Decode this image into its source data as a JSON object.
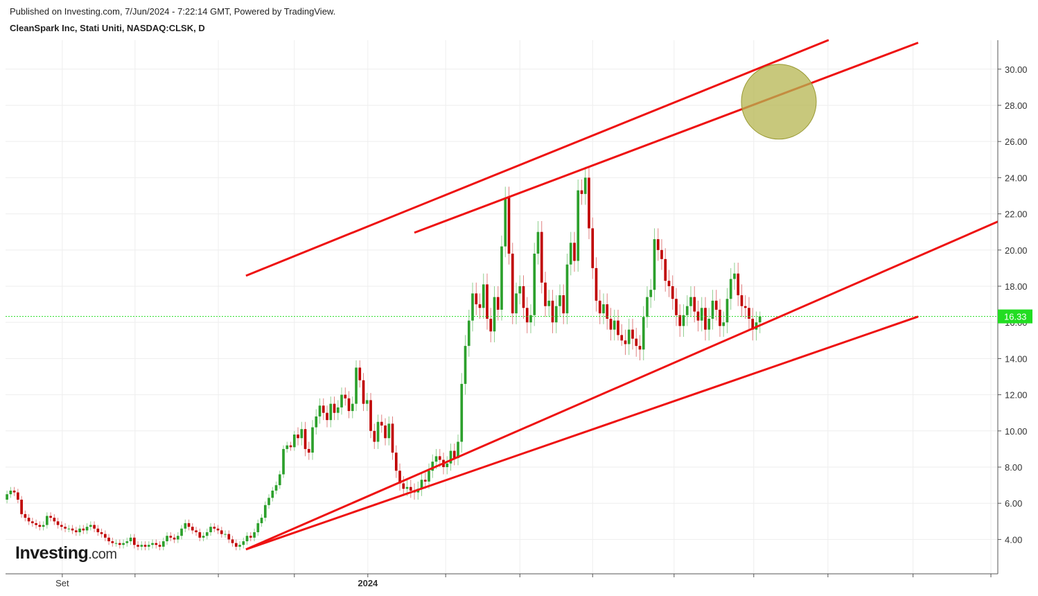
{
  "chart_data": {
    "type": "candlestick",
    "published": "Published on Investing.com, 7/Jun/2024 - 7:22:14 GMT, Powered by TradingView.",
    "title": "CleanSpark Inc, Stati Uniti, NASDAQ:CLSK, D",
    "watermark": {
      "brand": "Investing",
      "suffix": ".com"
    },
    "up_color": "#2ca02c",
    "down_color": "#c00000",
    "grid": true,
    "xlim": [
      -0.4,
      272.4
    ],
    "ylim": [
      2.1,
      31.6
    ],
    "xticks": [
      {
        "value": 15.2,
        "label": "Set"
      },
      {
        "value": 35.2,
        "label": null
      },
      {
        "value": 58.1,
        "label": null
      },
      {
        "value": 79,
        "label": null
      },
      {
        "value": 99.2,
        "label": "2024"
      },
      {
        "value": 120.6,
        "label": null
      },
      {
        "value": 141,
        "label": null
      },
      {
        "value": 161,
        "label": null
      },
      {
        "value": 183.4,
        "label": null
      },
      {
        "value": 205.3,
        "label": null
      },
      {
        "value": 225.7,
        "label": null
      },
      {
        "value": 249.1,
        "label": null
      },
      {
        "value": 270.5,
        "label": null
      }
    ],
    "yticks": [
      {
        "value": 4,
        "label": "4.00"
      },
      {
        "value": 6,
        "label": "6.00"
      },
      {
        "value": 8,
        "label": "8.00"
      },
      {
        "value": 10,
        "label": "10.00"
      },
      {
        "value": 12,
        "label": "12.00"
      },
      {
        "value": 14,
        "label": "14.00"
      },
      {
        "value": 16,
        "label": "16.00"
      },
      {
        "value": 18,
        "label": "18.00"
      },
      {
        "value": 20,
        "label": "20.00"
      },
      {
        "value": 22,
        "label": "22.00"
      },
      {
        "value": 24,
        "label": "24.00"
      },
      {
        "value": 26,
        "label": "26.00"
      },
      {
        "value": 28,
        "label": "28.00"
      },
      {
        "value": 30,
        "label": "30.00"
      }
    ],
    "last_price": {
      "value": 16.33,
      "label": "16.33",
      "color": "#22dd22"
    },
    "open": [
      6.2,
      6.5,
      6.7,
      6.6,
      6.2,
      5.4,
      5.2,
      5.0,
      4.9,
      4.8,
      4.7,
      4.8,
      5.3,
      5.2,
      5.0,
      4.8,
      4.7,
      4.6,
      4.6,
      4.5,
      4.4,
      4.6,
      4.5,
      4.7,
      4.8,
      4.6,
      4.4,
      4.3,
      4.1,
      3.9,
      3.8,
      3.8,
      3.7,
      3.8,
      3.9,
      4.1,
      3.7,
      3.6,
      3.7,
      3.6,
      3.7,
      3.8,
      3.7,
      3.6,
      3.9,
      4.2,
      4.1,
      4.0,
      4.2,
      4.6,
      4.9,
      4.7,
      4.5,
      4.4,
      4.1,
      4.2,
      4.4,
      4.7,
      4.6,
      4.5,
      4.3,
      4.3,
      4.0,
      3.8,
      3.6,
      3.7,
      3.9,
      4.2,
      4.1,
      4.4,
      4.9,
      5.2,
      5.9,
      6.3,
      6.7,
      7.0,
      7.6,
      9.0,
      9.2,
      9.1,
      9.8,
      9.6,
      10.1,
      9.0,
      8.8,
      10.2,
      10.8,
      11.4,
      11.0,
      10.6,
      11.5,
      11.0,
      11.3,
      12.0,
      11.8,
      11.1,
      11.5,
      13.5,
      12.8,
      11.5,
      11.7,
      10.0,
      9.4,
      10.5,
      10.3,
      9.6,
      10.4,
      8.8,
      7.8,
      7.1,
      6.8,
      6.9,
      6.7,
      6.6,
      6.8,
      7.3,
      7.2,
      7.8,
      8.3,
      8.6,
      8.4,
      8.0,
      8.2,
      8.9,
      8.5,
      9.4,
      12.6,
      14.7,
      16.1,
      17.6,
      17.0,
      16.8,
      18.1,
      16.2,
      15.5,
      17.4,
      16.7,
      20.2,
      22.9,
      19.8,
      16.5,
      17.6,
      18.0,
      16.8,
      16.0,
      16.4,
      19.8,
      21.0,
      18.2,
      16.9,
      17.2,
      16.0,
      16.9,
      17.5,
      16.5,
      19.2,
      20.4,
      19.4,
      23.3,
      23.1,
      24.0,
      21.2,
      19.0,
      17.2,
      16.5,
      17.0,
      16.2,
      15.6,
      16.1,
      15.3,
      15.0,
      14.8,
      15.6,
      15.1,
      14.7,
      14.5,
      16.3,
      17.4,
      17.8,
      20.6,
      20.0,
      19.5,
      18.3,
      18.0,
      17.3,
      16.4,
      15.8,
      16.4,
      16.9,
      17.4,
      16.6,
      16.1,
      16.8,
      15.6,
      16.2,
      17.2,
      16.7,
      15.8,
      16.0,
      17.3,
      18.4,
      18.7,
      17.5,
      16.9,
      16.8,
      16.2,
      15.6,
      16.0
    ],
    "high": [
      6.7,
      6.9,
      6.9,
      6.8,
      6.4,
      5.6,
      5.4,
      5.2,
      5.1,
      5.0,
      5.0,
      5.5,
      5.5,
      5.4,
      5.2,
      5.0,
      4.9,
      4.8,
      4.8,
      4.7,
      4.8,
      4.8,
      4.9,
      5.0,
      5.0,
      4.8,
      4.6,
      4.5,
      4.3,
      4.1,
      4.0,
      4.0,
      4.0,
      4.1,
      4.3,
      4.3,
      3.9,
      3.9,
      3.9,
      3.9,
      4.0,
      4.0,
      3.9,
      4.1,
      4.4,
      4.4,
      4.3,
      4.4,
      4.8,
      5.1,
      5.1,
      4.9,
      4.7,
      4.6,
      4.4,
      4.6,
      4.9,
      4.9,
      4.8,
      4.7,
      4.5,
      4.5,
      4.2,
      4.0,
      3.9,
      4.1,
      4.4,
      4.4,
      4.6,
      5.1,
      5.4,
      6.1,
      6.5,
      6.9,
      7.2,
      7.8,
      9.2,
      9.4,
      9.4,
      10.0,
      10.2,
      10.5,
      10.5,
      9.4,
      10.6,
      11.2,
      11.8,
      11.8,
      11.4,
      11.9,
      11.9,
      11.7,
      12.4,
      12.4,
      12.2,
      11.9,
      13.9,
      13.9,
      13.2,
      12.1,
      12.1,
      10.4,
      10.9,
      10.9,
      10.7,
      10.8,
      10.8,
      9.2,
      8.2,
      7.5,
      7.3,
      7.3,
      7.1,
      7.2,
      7.7,
      7.7,
      8.2,
      8.7,
      9.0,
      9.0,
      8.8,
      8.6,
      9.3,
      9.3,
      9.8,
      13.2,
      15.3,
      16.7,
      18.2,
      18.2,
      17.6,
      18.7,
      18.7,
      16.8,
      18.0,
      18.0,
      20.8,
      23.5,
      23.5,
      20.4,
      18.2,
      18.6,
      18.6,
      17.4,
      17.0,
      20.4,
      21.6,
      21.6,
      18.8,
      17.8,
      17.8,
      17.5,
      18.1,
      18.1,
      19.8,
      21.0,
      21.0,
      23.9,
      23.9,
      24.6,
      24.6,
      21.8,
      19.6,
      17.8,
      17.6,
      17.6,
      16.8,
      16.7,
      16.7,
      15.9,
      15.6,
      16.2,
      16.2,
      15.7,
      15.3,
      16.9,
      18.0,
      18.4,
      21.2,
      21.2,
      20.6,
      20.1,
      18.9,
      18.6,
      17.9,
      17.0,
      17.0,
      17.5,
      18.0,
      18.0,
      17.2,
      17.4,
      17.4,
      16.8,
      17.8,
      17.8,
      17.3,
      16.6,
      17.9,
      19.0,
      19.3,
      19.3,
      18.1,
      17.5,
      17.4,
      16.8,
      16.6,
      16.6
    ],
    "low": [
      6.0,
      6.3,
      6.4,
      6.0,
      5.2,
      5.0,
      4.8,
      4.7,
      4.6,
      4.5,
      4.5,
      4.6,
      5.0,
      4.8,
      4.6,
      4.5,
      4.4,
      4.4,
      4.3,
      4.2,
      4.2,
      4.3,
      4.3,
      4.5,
      4.4,
      4.2,
      4.1,
      3.9,
      3.7,
      3.6,
      3.6,
      3.5,
      3.5,
      3.6,
      3.7,
      3.5,
      3.4,
      3.4,
      3.4,
      3.4,
      3.5,
      3.5,
      3.4,
      3.4,
      3.7,
      3.9,
      3.8,
      3.8,
      4.0,
      4.4,
      4.5,
      4.3,
      4.2,
      3.9,
      3.9,
      4.0,
      4.2,
      4.4,
      4.3,
      4.1,
      4.1,
      3.8,
      3.6,
      3.4,
      3.4,
      3.5,
      3.7,
      3.9,
      3.9,
      4.2,
      4.7,
      5.0,
      5.7,
      6.1,
      6.5,
      6.8,
      7.4,
      8.8,
      8.9,
      8.9,
      9.2,
      9.2,
      8.6,
      8.4,
      8.4,
      9.8,
      10.4,
      10.6,
      10.2,
      10.2,
      10.6,
      10.6,
      10.9,
      11.4,
      10.7,
      10.7,
      11.1,
      12.4,
      11.1,
      11.1,
      9.6,
      9.0,
      9.0,
      9.9,
      9.2,
      9.2,
      8.4,
      7.4,
      6.7,
      6.4,
      6.4,
      6.3,
      6.2,
      6.2,
      6.4,
      6.8,
      6.8,
      7.4,
      7.9,
      8.0,
      7.6,
      7.6,
      7.8,
      8.1,
      8.1,
      8.8,
      12.0,
      14.1,
      15.5,
      16.4,
      16.2,
      16.2,
      15.6,
      14.9,
      14.9,
      16.1,
      16.1,
      19.6,
      19.2,
      15.9,
      15.9,
      17.0,
      16.2,
      15.4,
      15.4,
      15.8,
      19.2,
      17.6,
      16.3,
      16.3,
      15.4,
      15.4,
      16.3,
      15.9,
      15.9,
      18.6,
      18.8,
      18.8,
      22.5,
      22.5,
      20.6,
      18.4,
      16.6,
      15.9,
      15.9,
      15.6,
      15.0,
      15.0,
      15.0,
      14.7,
      14.2,
      14.2,
      14.5,
      14.1,
      13.9,
      13.9,
      15.7,
      16.8,
      17.2,
      19.4,
      18.9,
      17.7,
      17.4,
      16.7,
      15.8,
      15.2,
      15.2,
      15.8,
      16.3,
      16.0,
      15.5,
      15.5,
      15.0,
      15.0,
      15.6,
      16.1,
      15.2,
      15.2,
      15.4,
      16.7,
      17.8,
      16.9,
      16.3,
      16.2,
      15.6,
      15.0,
      15.0,
      15.4
    ],
    "close": [
      6.5,
      6.7,
      6.6,
      6.2,
      5.4,
      5.2,
      5.0,
      4.9,
      4.8,
      4.7,
      4.8,
      5.3,
      5.2,
      5.0,
      4.8,
      4.7,
      4.6,
      4.6,
      4.5,
      4.4,
      4.6,
      4.5,
      4.7,
      4.8,
      4.6,
      4.4,
      4.3,
      4.1,
      3.9,
      3.8,
      3.8,
      3.7,
      3.8,
      3.9,
      4.1,
      3.7,
      3.6,
      3.7,
      3.6,
      3.7,
      3.8,
      3.7,
      3.6,
      3.9,
      4.2,
      4.1,
      4.0,
      4.2,
      4.6,
      4.9,
      4.7,
      4.5,
      4.4,
      4.1,
      4.2,
      4.4,
      4.7,
      4.6,
      4.5,
      4.3,
      4.3,
      4.0,
      3.8,
      3.6,
      3.7,
      3.9,
      4.2,
      4.1,
      4.4,
      4.9,
      5.2,
      5.9,
      6.3,
      6.7,
      7.0,
      7.6,
      9.0,
      9.2,
      9.1,
      9.8,
      9.6,
      10.1,
      9.0,
      8.8,
      10.2,
      10.8,
      11.4,
      11.0,
      10.6,
      11.5,
      11.0,
      11.3,
      12.0,
      11.8,
      11.1,
      11.5,
      13.5,
      12.8,
      11.5,
      11.7,
      10.0,
      9.4,
      10.5,
      10.3,
      9.6,
      10.4,
      8.8,
      7.8,
      7.1,
      6.8,
      6.9,
      6.7,
      6.6,
      6.8,
      7.3,
      7.2,
      7.8,
      8.3,
      8.6,
      8.4,
      8.0,
      8.2,
      8.9,
      8.5,
      9.4,
      12.6,
      14.7,
      16.1,
      17.6,
      17.0,
      16.8,
      18.1,
      16.2,
      15.5,
      17.4,
      16.7,
      20.2,
      22.9,
      19.8,
      16.5,
      17.6,
      18.0,
      16.8,
      16.0,
      16.4,
      19.8,
      21.0,
      18.2,
      16.9,
      17.2,
      16.0,
      16.9,
      17.5,
      16.5,
      19.2,
      20.4,
      19.4,
      23.3,
      23.1,
      24.0,
      21.2,
      19.0,
      17.2,
      16.5,
      17.0,
      16.2,
      15.6,
      16.1,
      15.3,
      15.0,
      14.8,
      15.6,
      15.1,
      14.7,
      14.5,
      16.3,
      17.4,
      17.8,
      20.6,
      20.0,
      19.5,
      18.3,
      18.0,
      17.3,
      16.4,
      15.8,
      16.4,
      16.9,
      17.4,
      16.6,
      16.1,
      16.8,
      15.6,
      16.2,
      17.2,
      16.7,
      15.8,
      16.0,
      17.3,
      18.4,
      18.7,
      17.5,
      16.9,
      16.8,
      16.2,
      15.6,
      16.0,
      16.33
    ],
    "trendlines": [
      {
        "x": [
          65.7,
          225.9
        ],
        "y": [
          18.58,
          31.61
        ],
        "color": "#ee1111"
      },
      {
        "x": [
          112,
          250.5
        ],
        "y": [
          20.96,
          31.46
        ],
        "color": "#ee1111"
      },
      {
        "x": [
          65.7,
          272.4
        ],
        "y": [
          3.45,
          21.57
        ],
        "color": "#ee1111"
      },
      {
        "x": [
          65.7,
          250.5
        ],
        "y": [
          3.45,
          16.32
        ],
        "color": "#ee1111"
      }
    ],
    "highlight": {
      "x": 212.2,
      "y": 28.2,
      "radius": 2.07,
      "color": "#b5b550"
    }
  }
}
